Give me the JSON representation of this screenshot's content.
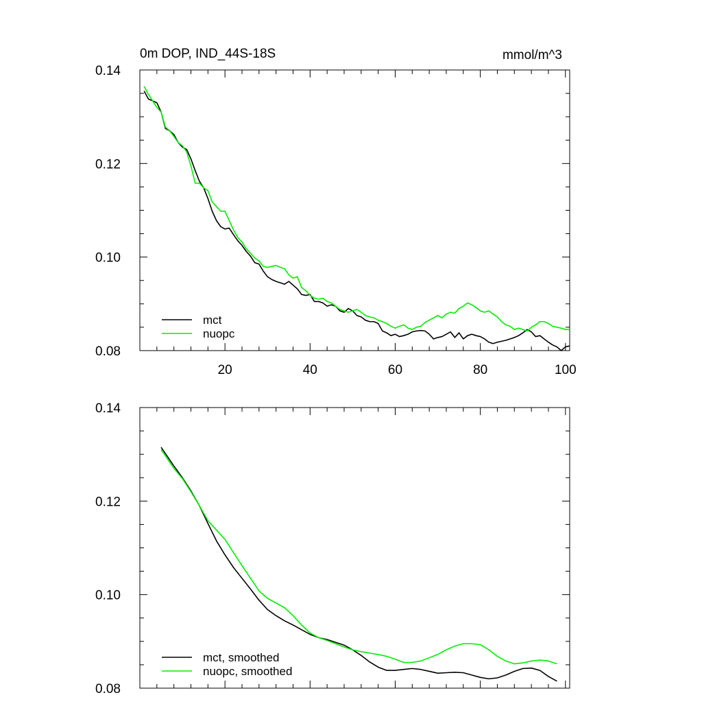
{
  "chart_data": [
    {
      "type": "line",
      "title": "0m DOP, IND_44S-18S",
      "units": "mmol/m^3",
      "xlim": [
        0,
        101
      ],
      "ylim": [
        0.08,
        0.14
      ],
      "xticks": [
        20,
        40,
        60,
        80,
        100
      ],
      "xtick_labels": [
        "20",
        "40",
        "60",
        "80",
        "100"
      ],
      "yticks": [
        0.08,
        0.1,
        0.12,
        0.14
      ],
      "ytick_labels": [
        "0.08",
        "0.10",
        "0.12",
        "0.14"
      ],
      "legend_position": "bottom-left",
      "series": [
        {
          "name": "mct",
          "color": "#000000",
          "x": [
            1,
            2,
            4,
            5,
            6,
            7,
            8,
            9,
            10,
            11,
            12,
            13,
            14,
            15,
            16,
            17,
            18,
            19,
            20,
            21,
            22,
            23,
            24,
            25,
            26,
            27,
            28,
            29,
            30,
            31,
            32,
            33,
            34,
            35,
            36,
            37,
            38,
            39,
            40,
            41,
            42,
            43,
            44,
            45,
            46,
            47,
            48,
            49,
            50,
            51,
            52,
            53,
            54,
            55,
            56,
            57,
            58,
            59,
            60,
            61,
            62,
            63,
            64,
            65,
            66,
            67,
            68,
            69,
            70,
            71,
            72,
            73,
            74,
            75,
            76,
            77,
            78,
            79,
            80,
            81,
            82,
            83,
            84,
            85,
            86,
            87,
            88,
            89,
            90,
            91,
            92,
            93,
            94,
            95,
            96,
            97,
            98,
            99,
            100,
            101
          ],
          "values": [
            0.1355,
            0.1338,
            0.133,
            0.131,
            0.1275,
            0.127,
            0.1262,
            0.1245,
            0.1235,
            0.123,
            0.121,
            0.1185,
            0.1162,
            0.1148,
            0.1125,
            0.1098,
            0.1078,
            0.1065,
            0.106,
            0.1062,
            0.1048,
            0.1035,
            0.1025,
            0.1012,
            0.1002,
            0.0988,
            0.0985,
            0.097,
            0.0958,
            0.0952,
            0.0948,
            0.0945,
            0.0942,
            0.0948,
            0.094,
            0.0932,
            0.092,
            0.0918,
            0.092,
            0.0905,
            0.0905,
            0.0902,
            0.0895,
            0.0898,
            0.0895,
            0.0885,
            0.0882,
            0.089,
            0.0885,
            0.0875,
            0.0872,
            0.0865,
            0.0862,
            0.0862,
            0.0858,
            0.0842,
            0.0838,
            0.0832,
            0.0835,
            0.083,
            0.0832,
            0.0835,
            0.084,
            0.0842,
            0.0843,
            0.0842,
            0.0835,
            0.0825,
            0.0828,
            0.083,
            0.0835,
            0.084,
            0.0828,
            0.0838,
            0.0825,
            0.0832,
            0.0835,
            0.0832,
            0.083,
            0.0825,
            0.0818,
            0.0815,
            0.0818,
            0.082,
            0.0822,
            0.0825,
            0.0828,
            0.0832,
            0.0838,
            0.0845,
            0.084,
            0.083,
            0.0832,
            0.0825,
            0.0818,
            0.0812,
            0.0808,
            0.08,
            0.0808,
            0.081
          ]
        },
        {
          "name": "nuopc",
          "color": "#00ee00",
          "x": [
            1,
            2,
            4,
            5,
            6,
            7,
            8,
            9,
            10,
            11,
            12,
            13,
            14,
            15,
            16,
            17,
            18,
            19,
            20,
            21,
            22,
            23,
            24,
            25,
            26,
            27,
            28,
            29,
            30,
            31,
            32,
            33,
            34,
            35,
            36,
            37,
            38,
            39,
            40,
            41,
            42,
            43,
            44,
            45,
            46,
            47,
            48,
            49,
            50,
            51,
            52,
            53,
            54,
            55,
            56,
            57,
            58,
            59,
            60,
            61,
            62,
            63,
            64,
            65,
            66,
            67,
            68,
            69,
            70,
            71,
            72,
            73,
            74,
            75,
            76,
            77,
            78,
            79,
            80,
            81,
            82,
            83,
            84,
            85,
            86,
            87,
            88,
            89,
            90,
            91,
            92,
            93,
            94,
            95,
            96,
            97,
            98,
            99,
            100,
            101
          ],
          "values": [
            0.1365,
            0.1348,
            0.132,
            0.131,
            0.1278,
            0.127,
            0.1258,
            0.1245,
            0.1238,
            0.1225,
            0.1195,
            0.1158,
            0.1158,
            0.1148,
            0.1142,
            0.1118,
            0.1108,
            0.1098,
            0.1098,
            0.1078,
            0.1058,
            0.1042,
            0.1032,
            0.1018,
            0.1008,
            0.0998,
            0.0992,
            0.098,
            0.0978,
            0.098,
            0.0982,
            0.0978,
            0.0975,
            0.0962,
            0.0955,
            0.0958,
            0.0935,
            0.0928,
            0.0918,
            0.0912,
            0.091,
            0.0912,
            0.0905,
            0.0902,
            0.0895,
            0.0888,
            0.0885,
            0.0882,
            0.0885,
            0.0888,
            0.0882,
            0.0875,
            0.0872,
            0.087,
            0.0865,
            0.0862,
            0.0858,
            0.0852,
            0.0848,
            0.0852,
            0.0855,
            0.0848,
            0.0845,
            0.085,
            0.0852,
            0.086,
            0.0865,
            0.087,
            0.0875,
            0.087,
            0.0878,
            0.0882,
            0.088,
            0.089,
            0.0895,
            0.0902,
            0.0898,
            0.0892,
            0.0885,
            0.0882,
            0.0885,
            0.0878,
            0.0872,
            0.0862,
            0.0855,
            0.0852,
            0.0845,
            0.0848,
            0.0845,
            0.0842,
            0.085,
            0.0855,
            0.0862,
            0.0862,
            0.0858,
            0.0852,
            0.085,
            0.0848,
            0.0845,
            0.0845
          ]
        }
      ]
    },
    {
      "type": "line",
      "title": "",
      "xlim": [
        0,
        101
      ],
      "ylim": [
        0.08,
        0.14
      ],
      "xticks": [
        20,
        40,
        60,
        80,
        100
      ],
      "xtick_labels": [],
      "yticks": [
        0.08,
        0.1,
        0.12,
        0.14
      ],
      "ytick_labels": [
        "0.08",
        "0.10",
        "0.12",
        "0.14"
      ],
      "legend_position": "bottom-left",
      "series": [
        {
          "name": "mct, smoothed",
          "color": "#000000",
          "x": [
            5,
            8,
            10,
            12,
            14,
            16,
            18,
            20,
            22,
            24,
            26,
            28,
            30,
            32,
            34,
            36,
            38,
            40,
            42,
            44,
            46,
            48,
            50,
            52,
            54,
            56,
            58,
            60,
            62,
            64,
            66,
            68,
            70,
            72,
            74,
            76,
            78,
            80,
            82,
            84,
            86,
            88,
            90,
            92,
            94,
            96,
            98
          ],
          "values": [
            0.1315,
            0.1275,
            0.125,
            0.1222,
            0.119,
            0.1152,
            0.1115,
            0.1085,
            0.1058,
            0.1035,
            0.1012,
            0.0988,
            0.0968,
            0.0955,
            0.0944,
            0.0935,
            0.0925,
            0.0915,
            0.0908,
            0.0904,
            0.0898,
            0.0892,
            0.0882,
            0.087,
            0.0856,
            0.0845,
            0.0838,
            0.0838,
            0.084,
            0.0842,
            0.084,
            0.0836,
            0.0832,
            0.0833,
            0.0834,
            0.0833,
            0.0828,
            0.0823,
            0.082,
            0.0822,
            0.0828,
            0.0836,
            0.0842,
            0.0843,
            0.0838,
            0.0825,
            0.0815
          ]
        },
        {
          "name": "nuopc, smoothed",
          "color": "#00ee00",
          "x": [
            5,
            8,
            10,
            12,
            14,
            16,
            18,
            20,
            22,
            24,
            26,
            28,
            30,
            32,
            34,
            36,
            38,
            40,
            42,
            44,
            46,
            48,
            50,
            52,
            54,
            56,
            58,
            60,
            62,
            64,
            66,
            68,
            70,
            72,
            74,
            76,
            78,
            80,
            82,
            84,
            86,
            88,
            90,
            92,
            94,
            96,
            98
          ],
          "values": [
            0.131,
            0.127,
            0.1248,
            0.122,
            0.119,
            0.1158,
            0.1138,
            0.1118,
            0.109,
            0.1062,
            0.1035,
            0.1008,
            0.0992,
            0.0982,
            0.0972,
            0.0955,
            0.0935,
            0.0918,
            0.0908,
            0.0902,
            0.0895,
            0.0888,
            0.0882,
            0.0878,
            0.0875,
            0.0872,
            0.0868,
            0.0862,
            0.0855,
            0.0855,
            0.0858,
            0.0865,
            0.0872,
            0.0882,
            0.089,
            0.0895,
            0.0895,
            0.0893,
            0.0882,
            0.0868,
            0.0858,
            0.0852,
            0.0854,
            0.0858,
            0.086,
            0.0858,
            0.0852
          ]
        }
      ]
    }
  ]
}
